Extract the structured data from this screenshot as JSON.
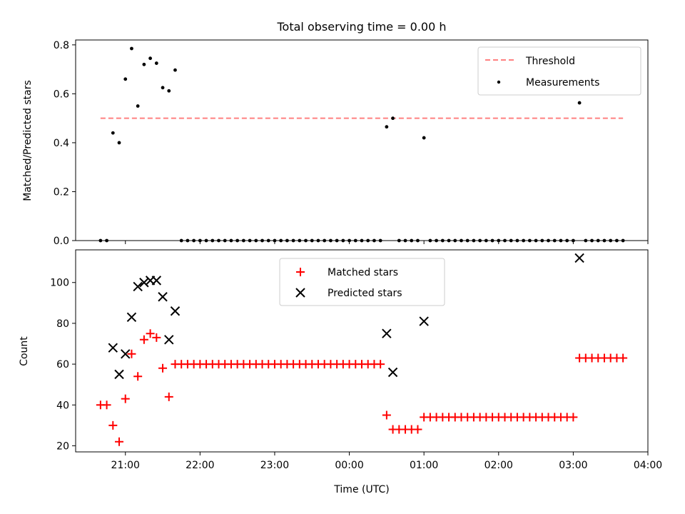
{
  "title": "Total observing time = 0.00 h",
  "xlabel": "Time (UTC)",
  "x_tick_labels": [
    "21:00",
    "22:00",
    "23:00",
    "00:00",
    "01:00",
    "02:00",
    "03:00",
    "04:00"
  ],
  "colors": {
    "threshold": "#ff8080",
    "measurements": "#000000",
    "matched": "#ff0000",
    "predicted": "#000000"
  },
  "chart_data": [
    {
      "type": "scatter",
      "ylabel": "Matched/Predicted stars",
      "ylim": [
        0,
        0.82
      ],
      "y_ticks": [
        0.0,
        0.2,
        0.4,
        0.6,
        0.8
      ],
      "y_tick_labels": [
        "0.0",
        "0.2",
        "0.4",
        "0.6",
        "0.8"
      ],
      "xlim": [
        "20:20",
        "04:00"
      ],
      "legend_position": "top-right",
      "threshold": {
        "name": "Threshold",
        "value": 0.5,
        "x_range": [
          "20:40",
          "03:40"
        ],
        "style": "dashed"
      },
      "series": [
        {
          "name": "Measurements",
          "x": [
            "20:40",
            "20:45",
            "20:50",
            "20:55",
            "21:00",
            "21:05",
            "21:10",
            "21:15",
            "21:20",
            "21:25",
            "21:30",
            "21:35",
            "21:40",
            "21:45",
            "21:50",
            "21:55",
            "22:00",
            "22:05",
            "22:10",
            "22:15",
            "22:20",
            "22:25",
            "22:30",
            "22:35",
            "22:40",
            "22:45",
            "22:50",
            "22:55",
            "23:00",
            "23:05",
            "23:10",
            "23:15",
            "23:20",
            "23:25",
            "23:30",
            "23:35",
            "23:40",
            "23:45",
            "23:50",
            "23:55",
            "00:00",
            "00:05",
            "00:10",
            "00:15",
            "00:20",
            "00:25",
            "00:30",
            "00:35",
            "00:40",
            "00:45",
            "00:50",
            "00:55",
            "01:00",
            "01:05",
            "01:10",
            "01:15",
            "01:20",
            "01:25",
            "01:30",
            "01:35",
            "01:40",
            "01:45",
            "01:50",
            "01:55",
            "02:00",
            "02:05",
            "02:10",
            "02:15",
            "02:20",
            "02:25",
            "02:30",
            "02:35",
            "02:40",
            "02:45",
            "02:50",
            "02:55",
            "03:00",
            "03:05",
            "03:10",
            "03:15",
            "03:20",
            "03:25",
            "03:30",
            "03:35",
            "03:40"
          ],
          "y": [
            0,
            0,
            0.44,
            0.4,
            0.66,
            0.785,
            0.55,
            0.72,
            0.745,
            0.725,
            0.625,
            0.612,
            0.697,
            0,
            0,
            0,
            0,
            0,
            0,
            0,
            0,
            0,
            0,
            0,
            0,
            0,
            0,
            0,
            0,
            0,
            0,
            0,
            0,
            0,
            0,
            0,
            0,
            0,
            0,
            0,
            0,
            0,
            0,
            0,
            0,
            0,
            0.465,
            0.5,
            0,
            0,
            0,
            0,
            0.42,
            0,
            0,
            0,
            0,
            0,
            0,
            0,
            0,
            0,
            0,
            0,
            0,
            0,
            0,
            0,
            0,
            0,
            0,
            0,
            0,
            0,
            0,
            0,
            0,
            0.563,
            0,
            0,
            0,
            0,
            0,
            0,
            0
          ]
        }
      ]
    },
    {
      "type": "scatter",
      "ylabel": "Count",
      "ylim": [
        17,
        116
      ],
      "y_ticks": [
        20,
        40,
        60,
        80,
        100
      ],
      "y_tick_labels": [
        "20",
        "40",
        "60",
        "80",
        "100"
      ],
      "xlim": [
        "20:20",
        "04:00"
      ],
      "legend_position": "upper center",
      "series": [
        {
          "name": "Matched stars",
          "marker": "plus",
          "x": [
            "20:40",
            "20:45",
            "20:50",
            "20:55",
            "21:00",
            "21:05",
            "21:10",
            "21:15",
            "21:20",
            "21:25",
            "21:30",
            "21:35",
            "21:40",
            "21:45",
            "21:50",
            "21:55",
            "22:00",
            "22:05",
            "22:10",
            "22:15",
            "22:20",
            "22:25",
            "22:30",
            "22:35",
            "22:40",
            "22:45",
            "22:50",
            "22:55",
            "23:00",
            "23:05",
            "23:10",
            "23:15",
            "23:20",
            "23:25",
            "23:30",
            "23:35",
            "23:40",
            "23:45",
            "23:50",
            "23:55",
            "00:00",
            "00:05",
            "00:10",
            "00:15",
            "00:20",
            "00:25",
            "00:30",
            "00:35",
            "00:40",
            "00:45",
            "00:50",
            "00:55",
            "01:00",
            "01:05",
            "01:10",
            "01:15",
            "01:20",
            "01:25",
            "01:30",
            "01:35",
            "01:40",
            "01:45",
            "01:50",
            "01:55",
            "02:00",
            "02:05",
            "02:10",
            "02:15",
            "02:20",
            "02:25",
            "02:30",
            "02:35",
            "02:40",
            "02:45",
            "02:50",
            "02:55",
            "03:00",
            "03:05",
            "03:10",
            "03:15",
            "03:20",
            "03:25",
            "03:30",
            "03:35",
            "03:40"
          ],
          "y": [
            40,
            40,
            30,
            22,
            43,
            65,
            54,
            72,
            75,
            73,
            58,
            44,
            60,
            60,
            60,
            60,
            60,
            60,
            60,
            60,
            60,
            60,
            60,
            60,
            60,
            60,
            60,
            60,
            60,
            60,
            60,
            60,
            60,
            60,
            60,
            60,
            60,
            60,
            60,
            60,
            60,
            60,
            60,
            60,
            60,
            60,
            35,
            28,
            28,
            28,
            28,
            28,
            34,
            34,
            34,
            34,
            34,
            34,
            34,
            34,
            34,
            34,
            34,
            34,
            34,
            34,
            34,
            34,
            34,
            34,
            34,
            34,
            34,
            34,
            34,
            34,
            34,
            63,
            63,
            63,
            63,
            63,
            63,
            63,
            63
          ]
        },
        {
          "name": "Predicted stars",
          "marker": "x",
          "x": [
            "20:50",
            "20:55",
            "21:00",
            "21:05",
            "21:10",
            "21:15",
            "21:20",
            "21:25",
            "21:30",
            "21:35",
            "21:40",
            "00:30",
            "00:35",
            "01:00",
            "03:05"
          ],
          "y": [
            68,
            55,
            65,
            83,
            98,
            100,
            101,
            101,
            93,
            72,
            86,
            75,
            56,
            81,
            112
          ]
        }
      ]
    }
  ]
}
